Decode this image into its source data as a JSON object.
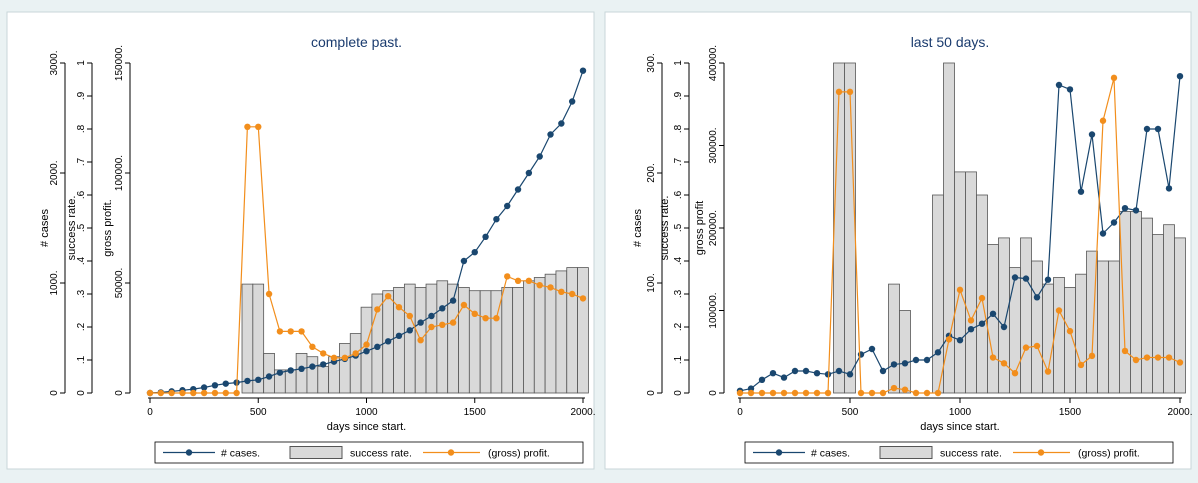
{
  "colors": {
    "cases": "#1a476f",
    "profit": "#f28e1c",
    "bar_fill": "#d9d9d9",
    "bar_stroke": "#555555",
    "plot_bg": "#ffffff",
    "panel_bg": "#eaf2f3",
    "title": "#1a3b6e"
  },
  "legend": {
    "cases": "# cases.",
    "success": "success rate.",
    "profit": "(gross) profit."
  },
  "chart_data": [
    {
      "type": "bar+line",
      "title": "complete past.",
      "xlabel": "days since start.",
      "xlim": [
        0,
        2000
      ],
      "x_ticks": [
        "0",
        "500",
        "1000",
        "1500",
        "2000."
      ],
      "x_tick_values": [
        0,
        500,
        1000,
        1500,
        2000
      ],
      "axes": [
        {
          "label": "# cases",
          "ticks": [
            "0",
            "1000.",
            "2000.",
            "3000."
          ],
          "tick_values": [
            0,
            1000,
            2000,
            3000
          ],
          "ylim": [
            0,
            3000
          ]
        },
        {
          "label": "success rate.",
          "ticks": [
            "0",
            ".1",
            ".2",
            ".3",
            ".4",
            ".5",
            ".6",
            ".7",
            ".8",
            ".9",
            "1"
          ],
          "tick_values": [
            0,
            0.1,
            0.2,
            0.3,
            0.4,
            0.5,
            0.6,
            0.7,
            0.8,
            0.9,
            1
          ],
          "ylim": [
            0,
            1
          ]
        },
        {
          "label": "gross profit.",
          "ticks": [
            "0",
            "50000.",
            "100000.",
            "150000."
          ],
          "tick_values": [
            0,
            50000,
            100000,
            150000
          ],
          "ylim": [
            0,
            150000
          ]
        }
      ],
      "x": [
        0,
        50,
        100,
        150,
        200,
        250,
        300,
        350,
        400,
        450,
        500,
        550,
        600,
        650,
        700,
        750,
        800,
        850,
        900,
        950,
        1000,
        1050,
        1100,
        1150,
        1200,
        1250,
        1300,
        1350,
        1400,
        1450,
        1500,
        1550,
        1600,
        1650,
        1700,
        1750,
        1800,
        1850,
        1900,
        1950,
        2000
      ],
      "series": [
        {
          "name": "# cases.",
          "kind": "line",
          "axis": 0,
          "values": [
            0,
            5,
            15,
            25,
            35,
            50,
            70,
            85,
            95,
            110,
            120,
            150,
            185,
            205,
            220,
            240,
            260,
            285,
            310,
            340,
            380,
            420,
            470,
            520,
            570,
            640,
            700,
            770,
            840,
            1200,
            1280,
            1420,
            1580,
            1700,
            1850,
            2000,
            2150,
            2350,
            2450,
            2650,
            2930
          ]
        },
        {
          "name": "success rate.",
          "kind": "bar",
          "axis": 1,
          "values": [
            0,
            0,
            0,
            0,
            0,
            0,
            0,
            0,
            0,
            0.33,
            0.33,
            0.12,
            0.07,
            0.07,
            0.12,
            0.11,
            0.08,
            0.11,
            0.15,
            0.18,
            0.26,
            0.3,
            0.31,
            0.32,
            0.33,
            0.32,
            0.33,
            0.34,
            0.33,
            0.32,
            0.31,
            0.31,
            0.31,
            0.32,
            0.32,
            0.34,
            0.35,
            0.36,
            0.37,
            0.38,
            0.38
          ]
        },
        {
          "name": "(gross) profit.",
          "kind": "line",
          "axis": 2,
          "values": [
            0,
            0,
            0,
            0,
            0,
            0,
            0,
            0,
            0,
            121000,
            121000,
            45000,
            28000,
            28000,
            28000,
            21000,
            18000,
            16000,
            16000,
            18000,
            22000,
            38000,
            44000,
            39000,
            35000,
            24000,
            30000,
            31000,
            32000,
            40000,
            36000,
            34000,
            34000,
            53000,
            51000,
            51000,
            49000,
            48000,
            46000,
            45000,
            43000
          ]
        }
      ]
    },
    {
      "type": "bar+line",
      "title": "last 50 days.",
      "xlabel": "days since start.",
      "xlim": [
        0,
        2000
      ],
      "x_ticks": [
        "0",
        "500",
        "1000",
        "1500",
        "2000."
      ],
      "x_tick_values": [
        0,
        500,
        1000,
        1500,
        2000
      ],
      "axes": [
        {
          "label": "# cases",
          "ticks": [
            "0",
            "100.",
            "200.",
            "300."
          ],
          "tick_values": [
            0,
            100,
            200,
            300
          ],
          "ylim": [
            0,
            300
          ]
        },
        {
          "label": "success rate.",
          "ticks": [
            "0",
            ".1",
            ".2",
            ".3",
            ".4",
            ".5",
            ".6",
            ".7",
            ".8",
            ".9",
            "1"
          ],
          "tick_values": [
            0,
            0.1,
            0.2,
            0.3,
            0.4,
            0.5,
            0.6,
            0.7,
            0.8,
            0.9,
            1
          ],
          "ylim": [
            0,
            1
          ]
        },
        {
          "label": "gross profit",
          "ticks": [
            "0",
            "100000.",
            "200000.",
            "300000.",
            "400000."
          ],
          "tick_values": [
            0,
            100000,
            200000,
            300000,
            400000
          ],
          "ylim": [
            0,
            400000
          ]
        }
      ],
      "x": [
        0,
        50,
        100,
        150,
        200,
        250,
        300,
        350,
        400,
        450,
        500,
        550,
        600,
        650,
        700,
        750,
        800,
        850,
        900,
        950,
        1000,
        1050,
        1100,
        1150,
        1200,
        1250,
        1300,
        1350,
        1400,
        1450,
        1500,
        1550,
        1600,
        1650,
        1700,
        1750,
        1800,
        1850,
        1900,
        1950,
        2000
      ],
      "series": [
        {
          "name": "# cases.",
          "kind": "line",
          "axis": 0,
          "values": [
            2,
            4,
            12,
            18,
            14,
            20,
            20,
            18,
            17,
            20,
            17,
            35,
            40,
            20,
            26,
            27,
            30,
            30,
            37,
            52,
            48,
            58,
            63,
            72,
            60,
            105,
            104,
            87,
            103,
            280,
            276,
            183,
            235,
            145,
            155,
            168,
            166,
            240,
            240,
            186,
            288
          ]
        },
        {
          "name": "success rate.",
          "kind": "bar",
          "axis": 1,
          "values": [
            0,
            0,
            0,
            0,
            0,
            0,
            0,
            0,
            0,
            1,
            1,
            0,
            0,
            0,
            0.33,
            0.25,
            0,
            0,
            0.6,
            1,
            0.67,
            0.67,
            0.6,
            0.45,
            0.47,
            0.38,
            0.47,
            0.4,
            0.33,
            0.35,
            0.32,
            0.36,
            0.43,
            0.4,
            0.4,
            0.55,
            0.55,
            0.53,
            0.48,
            0.51,
            0.47
          ]
        },
        {
          "name": "(gross) profit.",
          "kind": "line",
          "axis": 2,
          "values": [
            0,
            0,
            0,
            0,
            0,
            0,
            0,
            0,
            0,
            365000,
            365000,
            0,
            0,
            0,
            6000,
            4000,
            0,
            0,
            0,
            65000,
            125000,
            88000,
            115000,
            43000,
            36000,
            24000,
            55000,
            57000,
            26000,
            100000,
            75000,
            34000,
            45000,
            330000,
            382000,
            51000,
            40000,
            43000,
            43000,
            43000,
            37000
          ]
        }
      ]
    }
  ]
}
